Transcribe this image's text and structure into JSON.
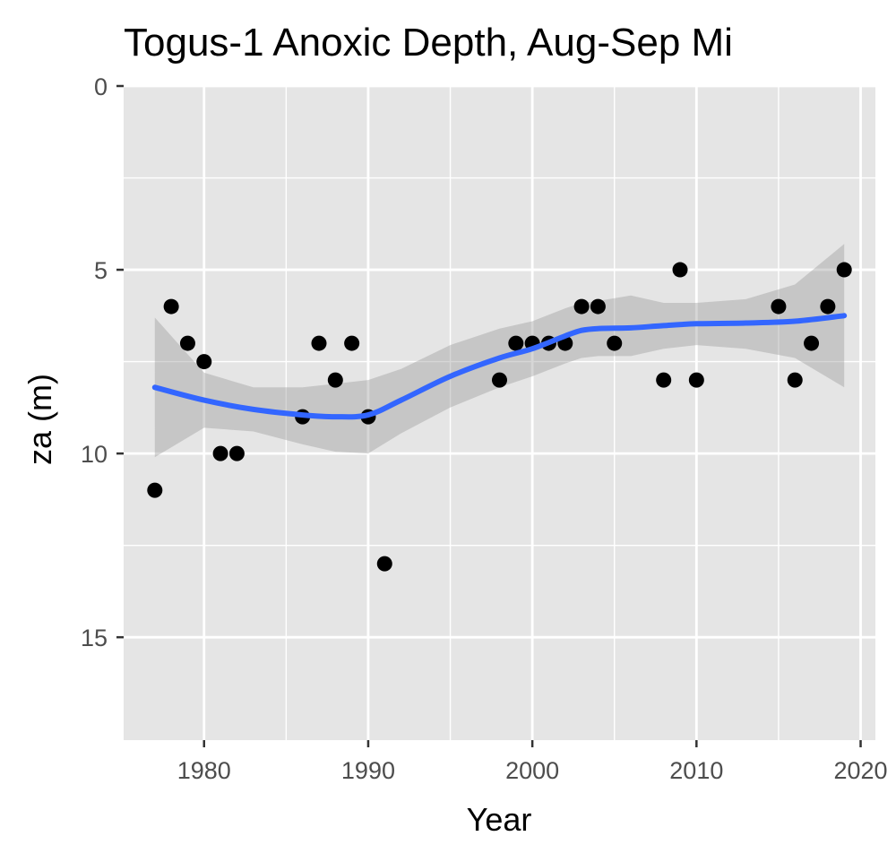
{
  "chart_data": {
    "type": "scatter",
    "title": "Togus-1 Anoxic Depth, Aug-Sep Mi",
    "xlabel": "Year",
    "ylabel": "za (m)",
    "xlim": [
      1975.1,
      2020.9
    ],
    "ylim": [
      0,
      17.8
    ],
    "y_reversed": true,
    "x_ticks": [
      1980,
      1990,
      2000,
      2010,
      2020
    ],
    "y_ticks": [
      0,
      5,
      10,
      15
    ],
    "x_tick_labels": [
      "1980",
      "1990",
      "2000",
      "2010",
      "2020"
    ],
    "y_tick_labels": [
      "0",
      "5",
      "10",
      "15"
    ],
    "grid": true,
    "legend": "none",
    "point_color": "#000000",
    "smooth_color": "#3366ff",
    "ribbon_color": "#999999",
    "panel_background": "#e5e5e5",
    "points": [
      {
        "x": 1977,
        "y": 11
      },
      {
        "x": 1978,
        "y": 6
      },
      {
        "x": 1979,
        "y": 7
      },
      {
        "x": 1980,
        "y": 7.5
      },
      {
        "x": 1981,
        "y": 10
      },
      {
        "x": 1982,
        "y": 10
      },
      {
        "x": 1986,
        "y": 9
      },
      {
        "x": 1987,
        "y": 7
      },
      {
        "x": 1988,
        "y": 8
      },
      {
        "x": 1989,
        "y": 7
      },
      {
        "x": 1990,
        "y": 9
      },
      {
        "x": 1991,
        "y": 13
      },
      {
        "x": 1998,
        "y": 8
      },
      {
        "x": 1999,
        "y": 7
      },
      {
        "x": 2000,
        "y": 7
      },
      {
        "x": 2001,
        "y": 7
      },
      {
        "x": 2002,
        "y": 7
      },
      {
        "x": 2003,
        "y": 6
      },
      {
        "x": 2004,
        "y": 6
      },
      {
        "x": 2005,
        "y": 7
      },
      {
        "x": 2008,
        "y": 8
      },
      {
        "x": 2009,
        "y": 5
      },
      {
        "x": 2010,
        "y": 8
      },
      {
        "x": 2015,
        "y": 6
      },
      {
        "x": 2016,
        "y": 8
      },
      {
        "x": 2017,
        "y": 7
      },
      {
        "x": 2018,
        "y": 6
      },
      {
        "x": 2019,
        "y": 5
      }
    ],
    "smooth_fit": {
      "x": [
        1977,
        1980,
        1983,
        1986,
        1988,
        1990,
        1992,
        1995,
        1998,
        2000,
        2002,
        2003,
        2004,
        2006,
        2008,
        2010,
        2013,
        2016,
        2019
      ],
      "y": [
        8.2,
        8.55,
        8.8,
        8.95,
        9.0,
        8.95,
        8.55,
        7.9,
        7.4,
        7.15,
        6.8,
        6.65,
        6.6,
        6.58,
        6.52,
        6.47,
        6.45,
        6.4,
        6.25
      ],
      "lower": [
        6.3,
        7.8,
        8.2,
        8.2,
        8.1,
        8.0,
        7.7,
        7.05,
        6.6,
        6.4,
        6.05,
        5.9,
        5.85,
        5.7,
        5.9,
        5.9,
        5.8,
        5.4,
        4.3
      ],
      "upper": [
        10.1,
        9.3,
        9.4,
        9.75,
        9.95,
        10.0,
        9.45,
        8.75,
        8.2,
        7.9,
        7.55,
        7.4,
        7.35,
        7.35,
        7.15,
        7.05,
        7.15,
        7.4,
        8.2
      ]
    }
  }
}
